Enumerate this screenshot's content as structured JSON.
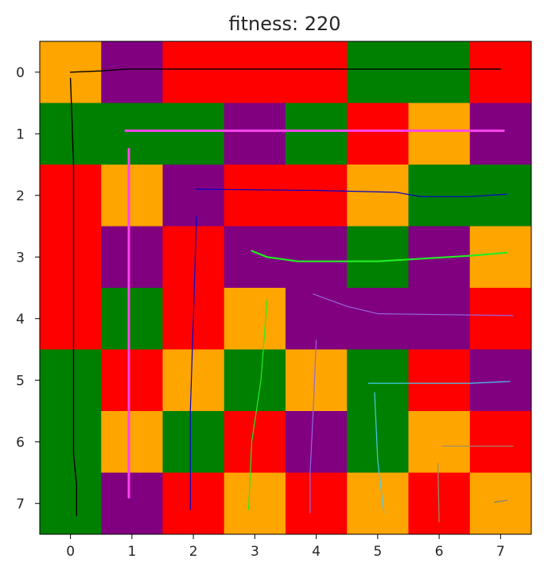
{
  "chart_data": {
    "type": "heatmap",
    "title": "fitness: 220",
    "xlabel": "",
    "ylabel": "",
    "x_ticks": [
      "0",
      "1",
      "2",
      "3",
      "4",
      "5",
      "6",
      "7"
    ],
    "y_ticks": [
      "0",
      "1",
      "2",
      "3",
      "4",
      "5",
      "6",
      "7"
    ],
    "xlim": [
      -0.5,
      7.5
    ],
    "ylim": [
      7.5,
      -0.5
    ],
    "y_axis_inverted": true,
    "grid": false,
    "color_map": {
      "O": "#ffa500",
      "P": "#800080",
      "R": "#ff0000",
      "G": "#008000"
    },
    "cells": [
      [
        "O",
        "P",
        "R",
        "R",
        "R",
        "G",
        "G",
        "R"
      ],
      [
        "G",
        "G",
        "G",
        "P",
        "G",
        "R",
        "O",
        "P"
      ],
      [
        "R",
        "O",
        "P",
        "R",
        "R",
        "O",
        "G",
        "G"
      ],
      [
        "R",
        "P",
        "R",
        "P",
        "P",
        "G",
        "P",
        "O"
      ],
      [
        "R",
        "G",
        "R",
        "O",
        "P",
        "P",
        "P",
        "R"
      ],
      [
        "G",
        "R",
        "O",
        "G",
        "O",
        "G",
        "R",
        "P"
      ],
      [
        "G",
        "O",
        "G",
        "R",
        "P",
        "G",
        "O",
        "R"
      ],
      [
        "G",
        "P",
        "R",
        "O",
        "R",
        "O",
        "R",
        "O"
      ]
    ],
    "paths": [
      {
        "color": "#000000",
        "width": 1.4,
        "points": [
          [
            0,
            0
          ],
          [
            0.5,
            -0.02
          ],
          [
            0.9,
            -0.05
          ],
          [
            3,
            -0.05
          ],
          [
            5,
            -0.05
          ],
          [
            7,
            -0.05
          ]
        ]
      },
      {
        "color": "#000000",
        "width": 1.4,
        "points": [
          [
            0,
            0.1
          ],
          [
            0.05,
            1.5
          ],
          [
            0.05,
            3.5
          ],
          [
            0.05,
            5
          ],
          [
            0.05,
            6.2
          ],
          [
            0.1,
            6.7
          ],
          [
            0.1,
            7.2
          ]
        ]
      },
      {
        "color": "#ff44ee",
        "width": 3,
        "points": [
          [
            0.9,
            0.95
          ],
          [
            7.05,
            0.95
          ]
        ]
      },
      {
        "color": "#ff44ee",
        "width": 3,
        "points": [
          [
            0.95,
            1.25
          ],
          [
            0.95,
            6.9
          ]
        ]
      },
      {
        "color": "#0000cc",
        "width": 1.2,
        "points": [
          [
            2.05,
            1.9
          ],
          [
            4,
            1.92
          ],
          [
            5.3,
            1.95
          ],
          [
            5.7,
            2.02
          ],
          [
            6.5,
            2.02
          ],
          [
            7.1,
            1.98
          ]
        ]
      },
      {
        "color": "#0000cc",
        "width": 1.2,
        "points": [
          [
            2.05,
            2.35
          ],
          [
            2.0,
            4
          ],
          [
            1.95,
            5.5
          ],
          [
            1.95,
            7.1
          ]
        ]
      },
      {
        "color": "#22ee22",
        "width": 2.2,
        "points": [
          [
            2.95,
            2.9
          ],
          [
            3.2,
            3
          ],
          [
            3.7,
            3.07
          ],
          [
            5,
            3.07
          ],
          [
            6.5,
            2.98
          ],
          [
            7.1,
            2.93
          ]
        ]
      },
      {
        "color": "#22ee22",
        "width": 1.2,
        "points": [
          [
            3.2,
            3.7
          ],
          [
            3.1,
            5
          ],
          [
            2.95,
            6
          ],
          [
            2.9,
            7.1
          ]
        ]
      },
      {
        "color": "#9966dd",
        "width": 1.2,
        "points": [
          [
            3.95,
            3.6
          ],
          [
            4.5,
            3.8
          ],
          [
            5,
            3.92
          ],
          [
            7.2,
            3.95
          ]
        ]
      },
      {
        "color": "#9966dd",
        "width": 1.2,
        "points": [
          [
            4.0,
            4.35
          ],
          [
            3.95,
            5.5
          ],
          [
            3.9,
            6.5
          ],
          [
            3.9,
            7.15
          ]
        ]
      },
      {
        "color": "#44ccee",
        "width": 1.2,
        "points": [
          [
            4.85,
            5.05
          ],
          [
            6.5,
            5.05
          ],
          [
            7.15,
            5.02
          ]
        ]
      },
      {
        "color": "#44ccee",
        "width": 1.2,
        "points": [
          [
            4.95,
            5.2
          ],
          [
            5.0,
            6.3
          ],
          [
            5.1,
            7.15
          ]
        ]
      },
      {
        "color": "#a08c6e",
        "width": 1.2,
        "points": [
          [
            6.05,
            6.07
          ],
          [
            7.2,
            6.07
          ]
        ]
      },
      {
        "color": "#a08c6e",
        "width": 1.2,
        "points": [
          [
            5.98,
            6.35
          ],
          [
            6.0,
            7.3
          ]
        ]
      },
      {
        "color": "#777777",
        "width": 1.2,
        "points": [
          [
            6.9,
            6.98
          ],
          [
            7.1,
            6.95
          ]
        ]
      }
    ]
  }
}
